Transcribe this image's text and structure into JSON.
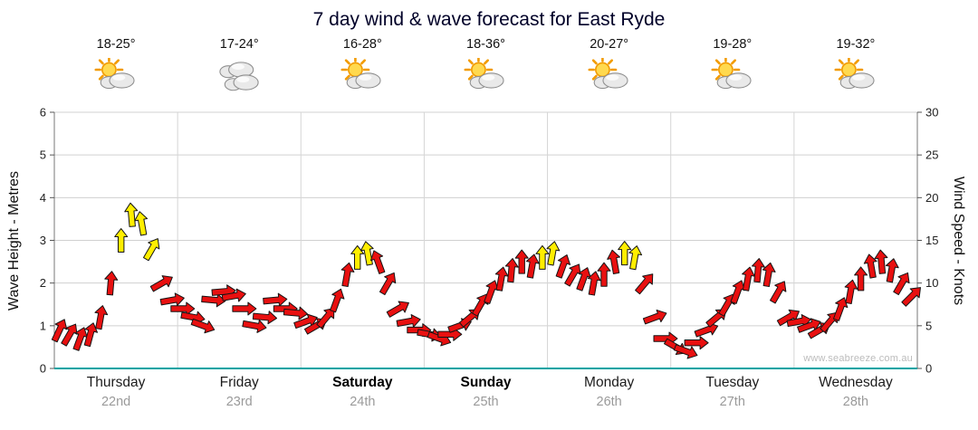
{
  "title": "7 day wind & wave forecast for East Ryde",
  "watermark": "www.seabreeze.com.au",
  "days": [
    {
      "name": "Thursday",
      "date": "22nd",
      "temp": "18-25°",
      "icon": "partly-cloudy",
      "bold": false
    },
    {
      "name": "Friday",
      "date": "23rd",
      "temp": "17-24°",
      "icon": "cloudy",
      "bold": false
    },
    {
      "name": "Saturday",
      "date": "24th",
      "temp": "16-28°",
      "icon": "partly-cloudy",
      "bold": true
    },
    {
      "name": "Sunday",
      "date": "25th",
      "temp": "18-36°",
      "icon": "partly-cloudy",
      "bold": true
    },
    {
      "name": "Monday",
      "date": "26th",
      "temp": "20-27°",
      "icon": "partly-cloudy",
      "bold": false
    },
    {
      "name": "Tuesday",
      "date": "27th",
      "temp": "19-28°",
      "icon": "partly-cloudy",
      "bold": false
    },
    {
      "name": "Wednesday",
      "date": "28th",
      "temp": "19-32°",
      "icon": "partly-cloudy",
      "bold": false
    }
  ],
  "chart_data": {
    "type": "wind-arrow-series",
    "title": "7 day wind & wave forecast for East Ryde",
    "left_axis": {
      "label": "Wave Height - Metres",
      "min": 0,
      "max": 6,
      "ticks": [
        0,
        1,
        2,
        3,
        4,
        5,
        6
      ]
    },
    "right_axis": {
      "label": "Wind Speed - Knots",
      "min": 0,
      "max": 30,
      "ticks": [
        0,
        5,
        10,
        15,
        20,
        25,
        30
      ]
    },
    "x_categories": [
      "Thursday 22nd",
      "Friday 23rd",
      "Saturday 24th",
      "Sunday 25th",
      "Monday 26th",
      "Tuesday 27th",
      "Wednesday 28th"
    ],
    "hours_per_point": 2,
    "grid": true,
    "colors": {
      "low": "#e81010",
      "high": "#ffee00",
      "threshold_knots": 13,
      "baseline": "#00a3a3"
    },
    "wind_knots": [
      4.5,
      4,
      3.5,
      4,
      6,
      10,
      15,
      18,
      17,
      14,
      10,
      8,
      7,
      6,
      5,
      8,
      9,
      8.5,
      7,
      5,
      6,
      8,
      7,
      6.5,
      5.5,
      5,
      6,
      8,
      11,
      13,
      13.5,
      12.5,
      10,
      7,
      5.5,
      4.5,
      4,
      3.5,
      4,
      5,
      6,
      7.5,
      9,
      10.5,
      11.5,
      12.5,
      12,
      13,
      13.5,
      12,
      11,
      10.5,
      10,
      11,
      12.5,
      13.5,
      13,
      10,
      6,
      3.5,
      2.5,
      2,
      3,
      4.5,
      6,
      7.5,
      9,
      10.5,
      11.5,
      11,
      9,
      6,
      5.5,
      5,
      4.5,
      5.5,
      7,
      9,
      10.5,
      12,
      12.5,
      11.5,
      10,
      8.5
    ],
    "wind_dir_deg": [
      25,
      30,
      20,
      15,
      10,
      5,
      0,
      355,
      350,
      30,
      60,
      80,
      90,
      100,
      110,
      95,
      85,
      80,
      90,
      100,
      95,
      85,
      90,
      95,
      70,
      60,
      40,
      20,
      10,
      0,
      350,
      340,
      30,
      60,
      80,
      90,
      100,
      110,
      90,
      70,
      50,
      30,
      20,
      10,
      5,
      0,
      10,
      0,
      10,
      20,
      30,
      20,
      10,
      0,
      350,
      0,
      10,
      40,
      70,
      90,
      120,
      110,
      90,
      70,
      50,
      30,
      20,
      10,
      5,
      10,
      30,
      60,
      80,
      70,
      60,
      40,
      20,
      10,
      0,
      350,
      355,
      10,
      30,
      45
    ]
  }
}
